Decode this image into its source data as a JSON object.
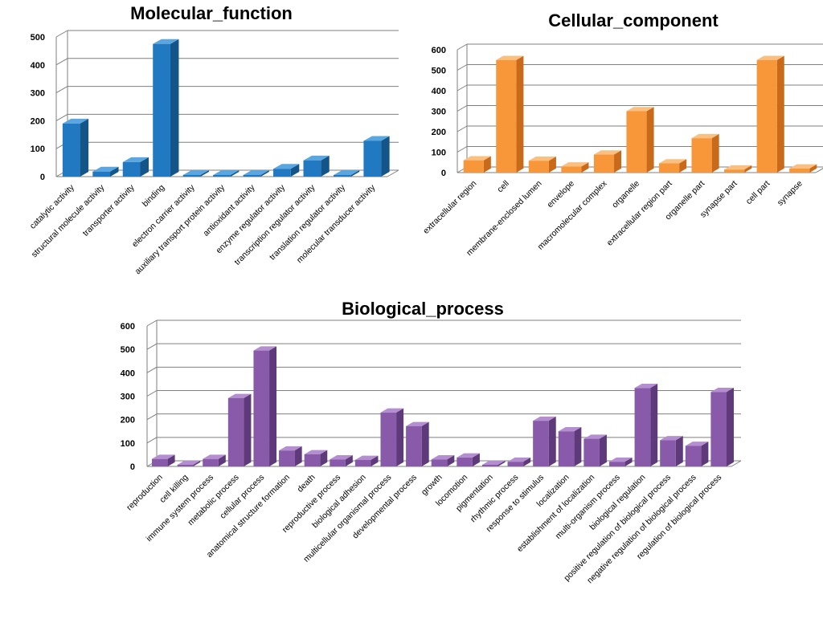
{
  "colors": {
    "molecular": {
      "front": "#2079C1",
      "side": "#135589",
      "top": "#5AA6E0"
    },
    "cellular": {
      "front": "#F8963A",
      "side": "#C96A1A",
      "top": "#FBBF80"
    },
    "biological": {
      "front": "#8A5AAA",
      "side": "#5E3A7A",
      "top": "#B48ED0"
    },
    "grid": "#7F7F7F",
    "wall": "#FFFFFF"
  },
  "chart_data": [
    {
      "id": "molecular",
      "type": "bar",
      "title": "Molecular_function",
      "categories": [
        "catalytic activity",
        "structural molecule activity",
        "transporter activity",
        "binding",
        "electron carrier activity",
        "auxiliary transport protein activity",
        "antioxidant activity",
        "enzyme regulator activity",
        "transcription regulator activity",
        "translation regulator activity",
        "molecular transducer activity"
      ],
      "values": [
        190,
        18,
        52,
        475,
        3,
        2,
        2,
        28,
        58,
        2,
        128
      ],
      "yticks": [
        0,
        100,
        200,
        300,
        400,
        500
      ],
      "ylim": [
        0,
        500
      ],
      "xlabel": "",
      "ylabel": ""
    },
    {
      "id": "cellular",
      "type": "bar",
      "title": "Cellular_component",
      "categories": [
        "extracellular region",
        "cell",
        "membrane-enclosed lumen",
        "envelope",
        "macromolecular complex",
        "organelle",
        "extracellular region part",
        "organelle part",
        "synapse part",
        "cell part",
        "synapse"
      ],
      "values": [
        60,
        550,
        58,
        30,
        88,
        300,
        45,
        168,
        15,
        550,
        20
      ],
      "yticks": [
        0,
        100,
        200,
        300,
        400,
        500,
        600
      ],
      "ylim": [
        0,
        600
      ],
      "xlabel": "",
      "ylabel": ""
    },
    {
      "id": "biological",
      "type": "bar",
      "title": "Biological_process",
      "categories": [
        "reproduction",
        "cell killing",
        "immune system process",
        "metabolic process",
        "cellular process",
        "anatomical structure formation",
        "death",
        "reproductive process",
        "biological adhesion",
        "multicellular organismal process",
        "developmental process",
        "growth",
        "locomotion",
        "pigmentation",
        "rhythmic process",
        "response to stimulus",
        "localization",
        "establishment of localization",
        "multi-organism process",
        "biological regulation",
        "positive regulation of biological  process",
        "negative regulation of biological  process",
        "regulation of biological  process"
      ],
      "values": [
        32,
        2,
        32,
        292,
        495,
        68,
        52,
        30,
        28,
        230,
        172,
        30,
        38,
        3,
        20,
        195,
        150,
        118,
        20,
        335,
        112,
        88,
        318
      ],
      "yticks": [
        0,
        100,
        200,
        300,
        400,
        500,
        600
      ],
      "ylim": [
        0,
        600
      ],
      "xlabel": "",
      "ylabel": ""
    }
  ]
}
